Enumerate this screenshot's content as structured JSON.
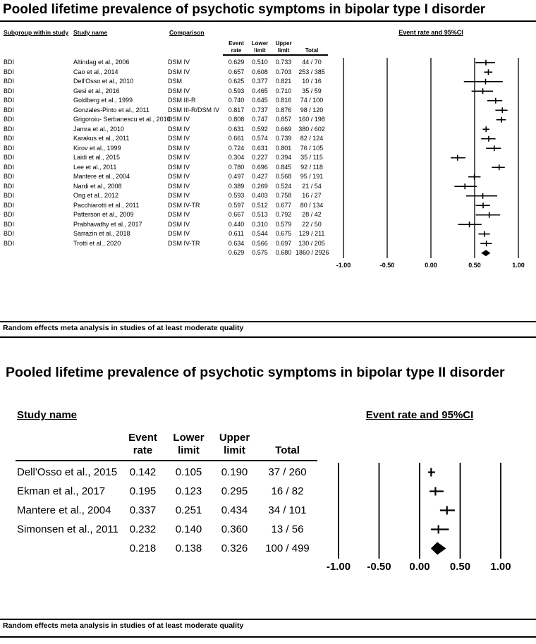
{
  "chart_data": [
    {
      "type": "forest",
      "title": "Pooled lifetime prevalence of psychotic symptoms in bipolar type I disorder",
      "columns": {
        "subgroup": "Subgroup within study",
        "study": "Study name",
        "comparison": "Comparison",
        "event_rate": "Event\nrate",
        "lower": "Lower\nlimit",
        "upper": "Upper\nlimit",
        "total": "Total",
        "plot": "Event rate and 95%CI"
      },
      "xlim": [
        -1.0,
        1.0
      ],
      "axis_ticks": [
        -1.0,
        -0.5,
        0.0,
        0.5,
        1.0
      ],
      "axis_tick_labels": [
        "-1.00",
        "-0.50",
        "0.00",
        "0.50",
        "1.00"
      ],
      "studies": [
        {
          "subgroup": "BDI",
          "study": "Altindag et al., 2006",
          "comparison": "DSM IV",
          "event_rate": 0.629,
          "lower": 0.51,
          "upper": 0.733,
          "total": "44 / 70"
        },
        {
          "subgroup": "BDI",
          "study": "Cao et al., 2014",
          "comparison": "DSM IV",
          "event_rate": 0.657,
          "lower": 0.608,
          "upper": 0.703,
          "total": "253 / 385"
        },
        {
          "subgroup": "BDI",
          "study": "Dell'Osso et al., 2010",
          "comparison": "DSM",
          "event_rate": 0.625,
          "lower": 0.377,
          "upper": 0.821,
          "total": "10 / 16"
        },
        {
          "subgroup": "BDI",
          "study": "Gesi et al., 2016",
          "comparison": "DSM IV",
          "event_rate": 0.593,
          "lower": 0.465,
          "upper": 0.71,
          "total": "35 / 59"
        },
        {
          "subgroup": "BDI",
          "study": "Goldberg et al., 1999",
          "comparison": "DSM III-R",
          "event_rate": 0.74,
          "lower": 0.645,
          "upper": 0.816,
          "total": "74 / 100"
        },
        {
          "subgroup": "BDI",
          "study": "Gonzales-Pinto et al., 2011",
          "comparison": "DSM III-R/DSM IV",
          "event_rate": 0.817,
          "lower": 0.737,
          "upper": 0.876,
          "total": "98 / 120"
        },
        {
          "subgroup": "BDI",
          "study": "Grigoroiu- Serbanescu et al., 2010",
          "comparison": "DSM IV",
          "event_rate": 0.808,
          "lower": 0.747,
          "upper": 0.857,
          "total": "160 / 198"
        },
        {
          "subgroup": "BDI",
          "study": "Jamra et al., 2010",
          "comparison": "DSM IV",
          "event_rate": 0.631,
          "lower": 0.592,
          "upper": 0.669,
          "total": "380 / 602"
        },
        {
          "subgroup": "BDI",
          "study": "Karakus et al., 2011",
          "comparison": "DSM IV",
          "event_rate": 0.661,
          "lower": 0.574,
          "upper": 0.739,
          "total": "82 / 124"
        },
        {
          "subgroup": "BDI",
          "study": "Kirov et al., 1999",
          "comparison": "DSM IV",
          "event_rate": 0.724,
          "lower": 0.631,
          "upper": 0.801,
          "total": "76 / 105"
        },
        {
          "subgroup": "BDI",
          "study": "Laidi et al., 2015",
          "comparison": "DSM IV",
          "event_rate": 0.304,
          "lower": 0.227,
          "upper": 0.394,
          "total": "35 / 115"
        },
        {
          "subgroup": "BDI",
          "study": "Lee et al., 2011",
          "comparison": "DSM IV",
          "event_rate": 0.78,
          "lower": 0.696,
          "upper": 0.845,
          "total": "92 / 118"
        },
        {
          "subgroup": "BDI",
          "study": "Mantere et al., 2004",
          "comparison": "DSM IV",
          "event_rate": 0.497,
          "lower": 0.427,
          "upper": 0.568,
          "total": "95 / 191"
        },
        {
          "subgroup": "BDI",
          "study": "Nardi et al., 2008",
          "comparison": "DSM IV",
          "event_rate": 0.389,
          "lower": 0.269,
          "upper": 0.524,
          "total": "21 / 54"
        },
        {
          "subgroup": "BDI",
          "study": "Ong et al., 2012",
          "comparison": "DSM IV",
          "event_rate": 0.593,
          "lower": 0.403,
          "upper": 0.758,
          "total": "16 / 27"
        },
        {
          "subgroup": "BDI",
          "study": "Pacchiarotti et al., 2011",
          "comparison": "DSM IV-TR",
          "event_rate": 0.597,
          "lower": 0.512,
          "upper": 0.677,
          "total": "80 / 134"
        },
        {
          "subgroup": "BDI",
          "study": "Patterson et al., 2009",
          "comparison": "DSM IV",
          "event_rate": 0.667,
          "lower": 0.513,
          "upper": 0.792,
          "total": "28 / 42"
        },
        {
          "subgroup": "BDI",
          "study": "Prabhavathy et al., 2017",
          "comparison": "DSM IV",
          "event_rate": 0.44,
          "lower": 0.31,
          "upper": 0.579,
          "total": "22 / 50"
        },
        {
          "subgroup": "BDI",
          "study": "Sarrazin et al., 2018",
          "comparison": "DSM IV",
          "event_rate": 0.611,
          "lower": 0.544,
          "upper": 0.675,
          "total": "129 / 211"
        },
        {
          "subgroup": "BDI",
          "study": "Trotti et al., 2020",
          "comparison": "DSM IV-TR",
          "event_rate": 0.634,
          "lower": 0.566,
          "upper": 0.697,
          "total": "130 / 205"
        }
      ],
      "summary": {
        "event_rate": 0.629,
        "lower": 0.575,
        "upper": 0.68,
        "total": "1860 / 2926"
      },
      "footer": "Random effects meta analysis in studies of at least moderate quality"
    },
    {
      "type": "forest",
      "title": "Pooled lifetime prevalence of psychotic symptoms in bipolar type II disorder",
      "columns": {
        "study": "Study name",
        "event_rate": "Event\nrate",
        "lower": "Lower\nlimit",
        "upper": "Upper\nlimit",
        "total": "Total",
        "plot": "Event rate and 95%CI"
      },
      "xlim": [
        -1.0,
        1.0
      ],
      "axis_ticks": [
        -1.0,
        -0.5,
        0.0,
        0.5,
        1.0
      ],
      "axis_tick_labels": [
        "-1.00",
        "-0.50",
        "0.00",
        "0.50",
        "1.00"
      ],
      "studies": [
        {
          "study": "Dell'Osso et al., 2015",
          "event_rate": 0.142,
          "lower": 0.105,
          "upper": 0.19,
          "total": "37 / 260"
        },
        {
          "study": "Ekman et al., 2017",
          "event_rate": 0.195,
          "lower": 0.123,
          "upper": 0.295,
          "total": "16 / 82"
        },
        {
          "study": "Mantere et al., 2004",
          "event_rate": 0.337,
          "lower": 0.251,
          "upper": 0.434,
          "total": "34 / 101"
        },
        {
          "study": "Simonsen et al., 2011",
          "event_rate": 0.232,
          "lower": 0.14,
          "upper": 0.36,
          "total": "13 / 56"
        }
      ],
      "summary": {
        "event_rate": 0.218,
        "lower": 0.138,
        "upper": 0.326,
        "total": "100 / 499"
      },
      "footer": "Random effects meta analysis in studies of at least moderate quality"
    }
  ]
}
